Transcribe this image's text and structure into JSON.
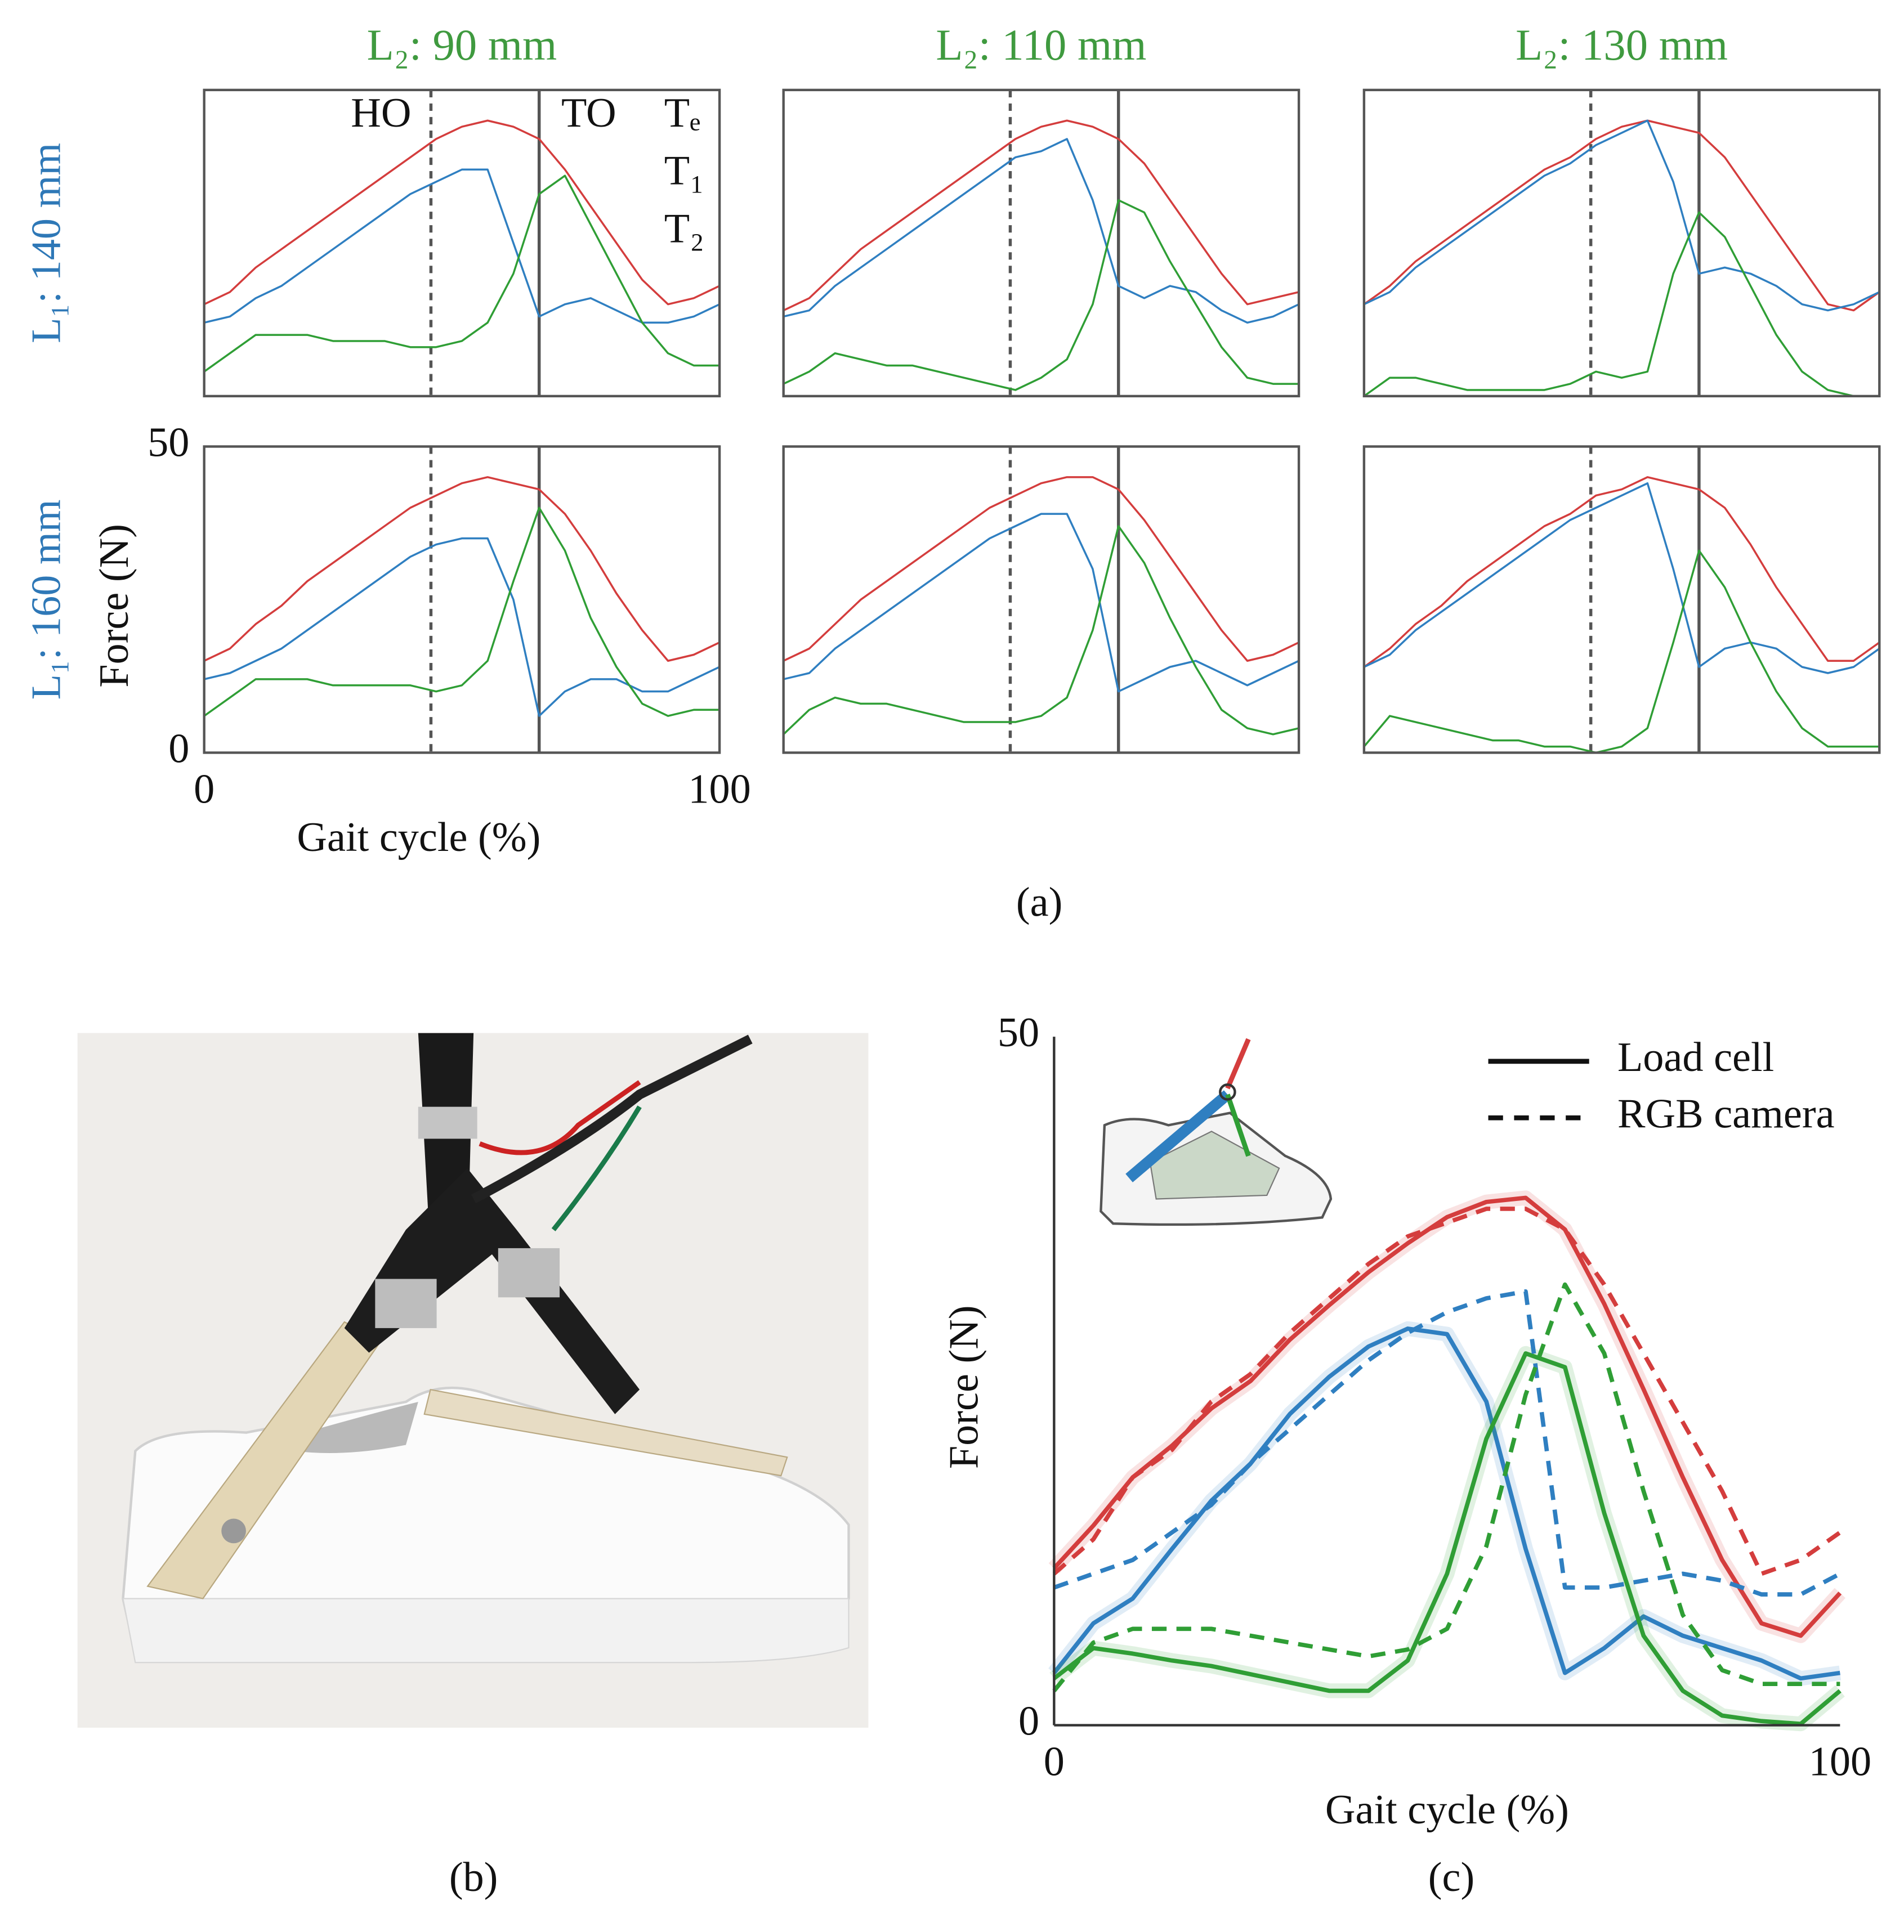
{
  "captions": {
    "a": "(a)",
    "b": "(b)",
    "c": "(c)"
  },
  "chart_data": [
    {
      "type": "line",
      "title": "L₂: 90 mm",
      "row_label": "L₁: 140 mm",
      "x": [
        0,
        5,
        10,
        15,
        20,
        25,
        30,
        35,
        40,
        45,
        50,
        55,
        60,
        65,
        70,
        75,
        80,
        85,
        90,
        95,
        100
      ],
      "xlim": [
        0,
        100
      ],
      "ylim": [
        0,
        50
      ],
      "vlines": [
        {
          "x": 44,
          "style": "dashed",
          "label": "HO"
        },
        {
          "x": 65,
          "style": "solid",
          "label": "TO"
        }
      ],
      "series": [
        {
          "name": "Tₑ",
          "color": "#d43d3d",
          "values": [
            15,
            17,
            21,
            24,
            27,
            30,
            33,
            36,
            39,
            42,
            44,
            45,
            44,
            42,
            37,
            31,
            25,
            19,
            15,
            16,
            18
          ]
        },
        {
          "name": "T₁",
          "color": "#2f7fc1",
          "values": [
            12,
            13,
            16,
            18,
            21,
            24,
            27,
            30,
            33,
            35,
            37,
            37,
            25,
            13,
            15,
            16,
            14,
            12,
            12,
            13,
            15
          ]
        },
        {
          "name": "T₂",
          "color": "#2f9e35",
          "values": [
            4,
            7,
            10,
            10,
            10,
            9,
            9,
            9,
            8,
            8,
            9,
            12,
            20,
            33,
            36,
            28,
            20,
            12,
            7,
            5,
            5
          ]
        }
      ]
    },
    {
      "type": "line",
      "title": "L₂: 110 mm",
      "x": [
        0,
        5,
        10,
        15,
        20,
        25,
        30,
        35,
        40,
        45,
        50,
        55,
        60,
        65,
        70,
        75,
        80,
        85,
        90,
        95,
        100
      ],
      "xlim": [
        0,
        100
      ],
      "ylim": [
        0,
        50
      ],
      "vlines": [
        {
          "x": 44,
          "style": "dashed"
        },
        {
          "x": 65,
          "style": "solid"
        }
      ],
      "series": [
        {
          "color": "#d43d3d",
          "values": [
            14,
            16,
            20,
            24,
            27,
            30,
            33,
            36,
            39,
            42,
            44,
            45,
            44,
            42,
            38,
            32,
            26,
            20,
            15,
            16,
            17
          ]
        },
        {
          "color": "#2f7fc1",
          "values": [
            13,
            14,
            18,
            21,
            24,
            27,
            30,
            33,
            36,
            39,
            40,
            42,
            32,
            18,
            16,
            18,
            17,
            14,
            12,
            13,
            15
          ]
        },
        {
          "color": "#2f9e35",
          "values": [
            2,
            4,
            7,
            6,
            5,
            5,
            4,
            3,
            2,
            1,
            3,
            6,
            15,
            32,
            30,
            22,
            15,
            8,
            3,
            2,
            2
          ]
        }
      ]
    },
    {
      "type": "line",
      "title": "L₂: 130 mm",
      "x": [
        0,
        5,
        10,
        15,
        20,
        25,
        30,
        35,
        40,
        45,
        50,
        55,
        60,
        65,
        70,
        75,
        80,
        85,
        90,
        95,
        100
      ],
      "xlim": [
        0,
        100
      ],
      "ylim": [
        0,
        50
      ],
      "vlines": [
        {
          "x": 44,
          "style": "dashed"
        },
        {
          "x": 65,
          "style": "solid"
        }
      ],
      "series": [
        {
          "color": "#d43d3d",
          "values": [
            15,
            18,
            22,
            25,
            28,
            31,
            34,
            37,
            39,
            42,
            44,
            45,
            44,
            43,
            39,
            33,
            27,
            21,
            15,
            14,
            17
          ]
        },
        {
          "color": "#2f7fc1",
          "values": [
            15,
            17,
            21,
            24,
            27,
            30,
            33,
            36,
            38,
            41,
            43,
            45,
            35,
            20,
            21,
            20,
            18,
            15,
            14,
            15,
            17
          ]
        },
        {
          "color": "#2f9e35",
          "values": [
            0,
            3,
            3,
            2,
            1,
            1,
            1,
            1,
            2,
            4,
            3,
            4,
            20,
            30,
            26,
            18,
            10,
            4,
            1,
            0,
            0
          ]
        }
      ]
    },
    {
      "type": "line",
      "row_label": "L₁: 160 mm",
      "xlabel": "Gait cycle (%)",
      "ylabel": "Force (N)",
      "x": [
        0,
        5,
        10,
        15,
        20,
        25,
        30,
        35,
        40,
        45,
        50,
        55,
        60,
        65,
        70,
        75,
        80,
        85,
        90,
        95,
        100
      ],
      "xlim": [
        0,
        100
      ],
      "ylim": [
        0,
        50
      ],
      "xticks": [
        0,
        100
      ],
      "yticks": [
        0,
        50
      ],
      "vlines": [
        {
          "x": 44,
          "style": "dashed"
        },
        {
          "x": 65,
          "style": "solid"
        }
      ],
      "series": [
        {
          "color": "#d43d3d",
          "values": [
            15,
            17,
            21,
            24,
            28,
            31,
            34,
            37,
            40,
            42,
            44,
            45,
            44,
            43,
            39,
            33,
            26,
            20,
            15,
            16,
            18
          ]
        },
        {
          "color": "#2f7fc1",
          "values": [
            12,
            13,
            15,
            17,
            20,
            23,
            26,
            29,
            32,
            34,
            35,
            35,
            25,
            6,
            10,
            12,
            12,
            10,
            10,
            12,
            14
          ]
        },
        {
          "color": "#2f9e35",
          "values": [
            6,
            9,
            12,
            12,
            12,
            11,
            11,
            11,
            11,
            10,
            11,
            15,
            28,
            40,
            33,
            22,
            14,
            8,
            6,
            7,
            7
          ]
        }
      ]
    },
    {
      "type": "line",
      "x": [
        0,
        5,
        10,
        15,
        20,
        25,
        30,
        35,
        40,
        45,
        50,
        55,
        60,
        65,
        70,
        75,
        80,
        85,
        90,
        95,
        100
      ],
      "xlim": [
        0,
        100
      ],
      "ylim": [
        0,
        50
      ],
      "vlines": [
        {
          "x": 44,
          "style": "dashed"
        },
        {
          "x": 65,
          "style": "solid"
        }
      ],
      "series": [
        {
          "color": "#d43d3d",
          "values": [
            15,
            17,
            21,
            25,
            28,
            31,
            34,
            37,
            40,
            42,
            44,
            45,
            45,
            43,
            38,
            32,
            26,
            20,
            15,
            16,
            18
          ]
        },
        {
          "color": "#2f7fc1",
          "values": [
            12,
            13,
            17,
            20,
            23,
            26,
            29,
            32,
            35,
            37,
            39,
            39,
            30,
            10,
            12,
            14,
            15,
            13,
            11,
            13,
            15
          ]
        },
        {
          "color": "#2f9e35",
          "values": [
            3,
            7,
            9,
            8,
            8,
            7,
            6,
            5,
            5,
            5,
            6,
            9,
            20,
            37,
            31,
            22,
            14,
            7,
            4,
            3,
            4
          ]
        }
      ]
    },
    {
      "type": "line",
      "x": [
        0,
        5,
        10,
        15,
        20,
        25,
        30,
        35,
        40,
        45,
        50,
        55,
        60,
        65,
        70,
        75,
        80,
        85,
        90,
        95,
        100
      ],
      "xlim": [
        0,
        100
      ],
      "ylim": [
        0,
        50
      ],
      "vlines": [
        {
          "x": 44,
          "style": "dashed"
        },
        {
          "x": 65,
          "style": "solid"
        }
      ],
      "series": [
        {
          "color": "#d43d3d",
          "values": [
            14,
            17,
            21,
            24,
            28,
            31,
            34,
            37,
            39,
            42,
            43,
            45,
            44,
            43,
            40,
            34,
            27,
            21,
            15,
            15,
            18
          ]
        },
        {
          "color": "#2f7fc1",
          "values": [
            14,
            16,
            20,
            23,
            26,
            29,
            32,
            35,
            38,
            40,
            42,
            44,
            30,
            14,
            17,
            18,
            17,
            14,
            13,
            14,
            17
          ]
        },
        {
          "color": "#2f9e35",
          "values": [
            1,
            6,
            5,
            4,
            3,
            2,
            2,
            1,
            1,
            0,
            1,
            4,
            18,
            33,
            27,
            18,
            10,
            4,
            1,
            1,
            1
          ]
        }
      ]
    },
    {
      "type": "line",
      "xlabel": "Gait cycle (%)",
      "ylabel": "Force (N)",
      "x": [
        0,
        5,
        10,
        15,
        20,
        25,
        30,
        35,
        40,
        45,
        50,
        55,
        60,
        65,
        70,
        75,
        80,
        85,
        90,
        95,
        100
      ],
      "xlim": [
        0,
        100
      ],
      "ylim": [
        0,
        50
      ],
      "xticks": [
        0,
        100
      ],
      "yticks": [
        0,
        50
      ],
      "legend": [
        {
          "name": "Load cell",
          "style": "solid"
        },
        {
          "name": "RGB camera",
          "style": "dashed"
        }
      ],
      "series": [
        {
          "color": "#d43d3d",
          "style": "solid",
          "values": [
            11.4,
            14.5,
            18,
            20.3,
            23,
            25,
            28,
            30.5,
            32.9,
            35,
            36.9,
            38,
            38.3,
            36,
            30.6,
            24.4,
            18,
            12,
            7.4,
            6.5,
            9.6
          ]
        },
        {
          "color": "#2f7fc1",
          "style": "solid",
          "values": [
            3.8,
            7.4,
            9.2,
            12.8,
            16.3,
            19,
            22.6,
            25.3,
            27.5,
            28.8,
            28.4,
            23.5,
            12.8,
            3.8,
            5.6,
            7.9,
            6.5,
            5.6,
            4.7,
            3.4,
            3.8
          ]
        },
        {
          "color": "#2f9e35",
          "style": "solid",
          "values": [
            3.4,
            5.6,
            5.2,
            4.7,
            4.3,
            3.7,
            3.1,
            2.5,
            2.5,
            4.7,
            11,
            20.8,
            27,
            26,
            15.4,
            6.5,
            2.5,
            0.7,
            0.3,
            0.1,
            2.5
          ]
        },
        {
          "color": "#d43d3d",
          "style": "dashed",
          "values": [
            11,
            13.5,
            18,
            20,
            23.5,
            25.5,
            28.5,
            31,
            33.5,
            35.5,
            36.5,
            37.5,
            37.5,
            36,
            32,
            27,
            22,
            17,
            11,
            12,
            14
          ]
        },
        {
          "color": "#2f7fc1",
          "style": "dashed",
          "values": [
            10,
            11,
            12,
            14,
            16,
            19,
            21.5,
            24,
            26.5,
            28.5,
            30,
            31,
            31.5,
            10,
            10,
            10.5,
            11,
            10.5,
            9.5,
            9.5,
            11
          ]
        },
        {
          "color": "#2f9e35",
          "style": "dashed",
          "values": [
            2.5,
            6,
            7,
            7,
            7,
            6.5,
            6,
            5.5,
            5,
            5.5,
            7,
            13,
            24,
            32,
            27,
            17,
            8,
            4,
            3,
            3,
            3
          ]
        }
      ]
    }
  ]
}
